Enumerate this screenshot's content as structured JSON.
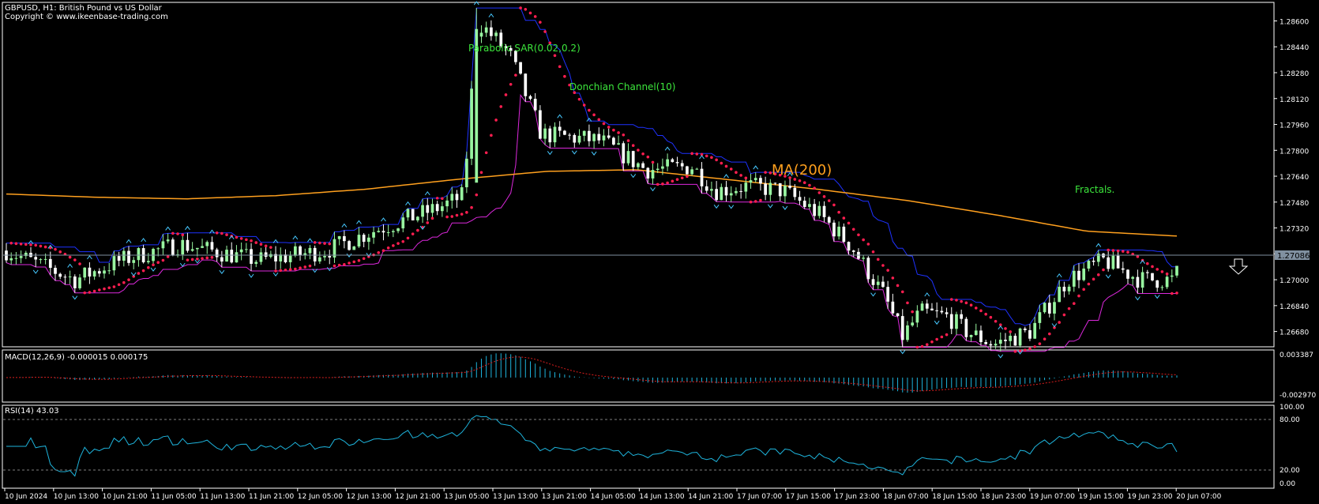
{
  "header": {
    "symbol_line": "GBPUSD, H1:  British Pound vs US Dollar",
    "copyright": "Copyright © www.ikeenbase-trading.com"
  },
  "annotations": {
    "sar": "Parabolic SAR(0.02,0.2)",
    "donchian": "Donchian Channel(10)",
    "ma": "MA(200)",
    "fractals": "Fractals."
  },
  "price_axis": {
    "ticks": [
      "1.28600",
      "1.28440",
      "1.28280",
      "1.28120",
      "1.27960",
      "1.27800",
      "1.27640",
      "1.27480",
      "1.27320",
      "1.27160",
      "1.27000",
      "1.26840",
      "1.26680"
    ],
    "current": "1.27086"
  },
  "macd": {
    "title": "MACD(12,26,9) -0.000015 0.000175",
    "ticks": [
      "0.003387",
      "-0.002970"
    ]
  },
  "rsi": {
    "title": "RSI(14) 43.03",
    "ticks": [
      "100.00",
      "80.00",
      "20.00",
      "0.00"
    ]
  },
  "time_axis": [
    "10 Jun 2024",
    "10 Jun 13:00",
    "10 Jun 21:00",
    "11 Jun 05:00",
    "11 Jun 13:00",
    "11 Jun 21:00",
    "12 Jun 05:00",
    "12 Jun 13:00",
    "12 Jun 21:00",
    "13 Jun 05:00",
    "13 Jun 13:00",
    "13 Jun 21:00",
    "14 Jun 05:00",
    "14 Jun 13:00",
    "14 Jun 21:00",
    "17 Jun 07:00",
    "17 Jun 15:00",
    "17 Jun 23:00",
    "18 Jun 07:00",
    "18 Jun 15:00",
    "18 Jun 23:00",
    "19 Jun 07:00",
    "19 Jun 15:00",
    "19 Jun 23:00",
    "20 Jun 07:00"
  ],
  "colors": {
    "bull": "#98f5a0",
    "bear": "#ffffff",
    "ma": "#ffa01e",
    "sar": "#ff1e50",
    "donchian_upper": "#1e32ff",
    "donchian_lower": "#dc28dc",
    "macd": "#1eb4dc",
    "signal": "#dc1e1e",
    "rsi": "#1eb4dc",
    "fractal": "#46c8ff",
    "grid": "#ffffff"
  },
  "chart_data": {
    "type": "candlestick",
    "ylim": [
      1.266,
      1.287
    ],
    "key_points": {
      "start_open": 1.2715,
      "pre_spike_close": 1.2758,
      "spike_high": 1.2868,
      "mid_drop_low": 1.2661,
      "last_close": 1.27086
    },
    "ma200_path": [
      1.2753,
      1.2751,
      1.275,
      1.2752,
      1.2756,
      1.2762,
      1.2767,
      1.2768,
      1.2762,
      1.2756,
      1.2749,
      1.274,
      1.273,
      1.2727
    ],
    "macd_last": -1.5e-05,
    "signal_last": 0.000175,
    "rsi_last": 43.03
  }
}
